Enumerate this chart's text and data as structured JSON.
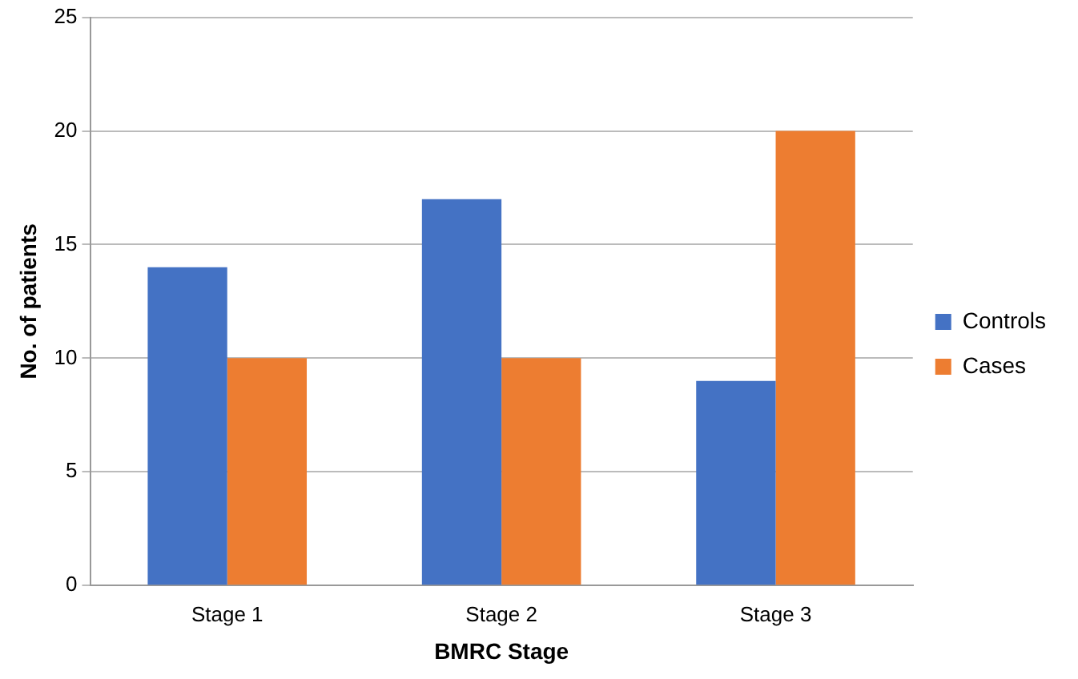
{
  "chart_data": {
    "type": "bar",
    "xlabel": "BMRC Stage",
    "ylabel": "No. of patients",
    "categories": [
      "Stage 1",
      "Stage 2",
      "Stage 3"
    ],
    "series": [
      {
        "name": "Controls",
        "color": "#4472c4",
        "values": [
          14,
          17,
          9
        ]
      },
      {
        "name": "Cases",
        "color": "#ed7d31",
        "values": [
          10,
          10,
          20
        ]
      }
    ],
    "ylim": [
      0,
      25
    ],
    "yticks": [
      0,
      5,
      10,
      15,
      20,
      25
    ],
    "grid": "y",
    "legend": "right"
  }
}
